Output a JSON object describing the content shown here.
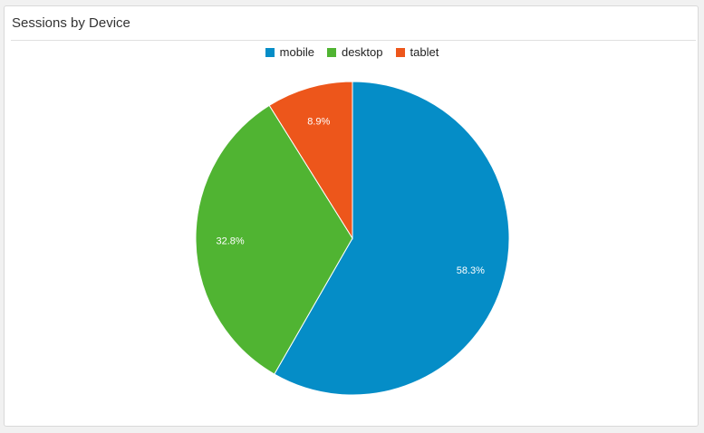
{
  "card": {
    "title": "Sessions by Device"
  },
  "chart_data": {
    "type": "pie",
    "title": "",
    "legend_position": "top",
    "categories": [
      "mobile",
      "desktop",
      "tablet"
    ],
    "values": [
      58.3,
      32.8,
      8.9
    ],
    "labels": [
      "58.3%",
      "32.8%",
      "8.9%"
    ],
    "colors": [
      "#058dc7",
      "#50b432",
      "#ed561b"
    ],
    "start_angle": "12 o'clock, clockwise"
  }
}
